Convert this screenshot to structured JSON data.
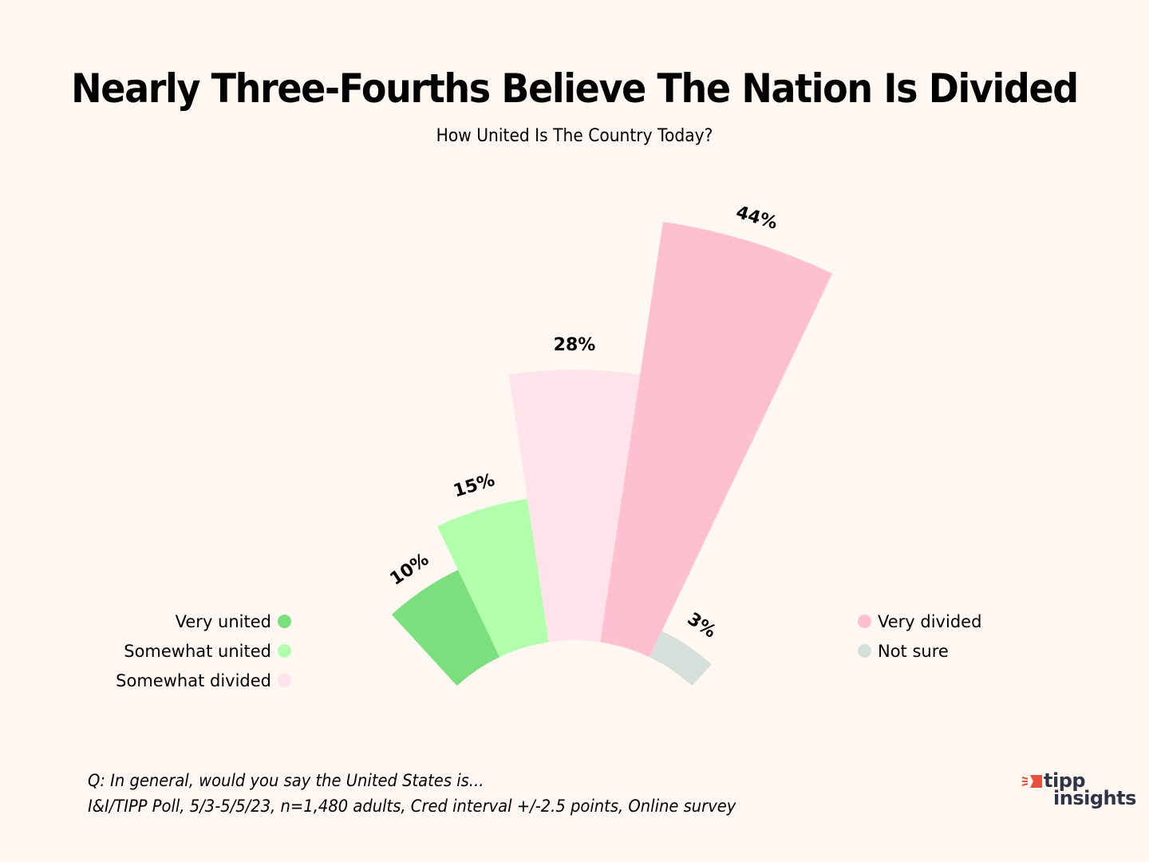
{
  "chart_data": {
    "type": "bar",
    "layout": "radial",
    "title": "Nearly Three-Fourths Believe The Nation Is Divided",
    "subtitle": "How United Is The Country Today?",
    "categories": [
      "Very united",
      "Somewhat united",
      "Somewhat divided",
      "Very divided",
      "Not sure"
    ],
    "values": [
      10,
      15,
      28,
      44,
      3
    ],
    "value_labels": [
      "10%",
      "15%",
      "28%",
      "44%",
      "3%"
    ],
    "colors": [
      "#7adf7c",
      "#b1fead",
      "#fee4ea",
      "#fec0d0",
      "#d6e0da"
    ],
    "unit": "%",
    "legend": {
      "left": [
        {
          "label": "Very united",
          "color": "#7adf7c"
        },
        {
          "label": "Somewhat united",
          "color": "#b1fead"
        },
        {
          "label": "Somewhat divided",
          "color": "#fee4ea"
        }
      ],
      "right": [
        {
          "label": "Very divided",
          "color": "#fec0d0"
        },
        {
          "label": "Not sure",
          "color": "#d6e0da"
        }
      ]
    }
  },
  "footer": {
    "question": "Q: In general, would you say the United States is...",
    "source": "I&I/TIPP Poll, 5/3-5/5/23, n=1,480 adults, Cred interval +/-2.5 points, Online survey"
  },
  "logo": {
    "line1": "tipp",
    "line2": "insights",
    "accent": "#e8503e",
    "text_color": "#2f3446"
  },
  "background": "#fef7f2"
}
